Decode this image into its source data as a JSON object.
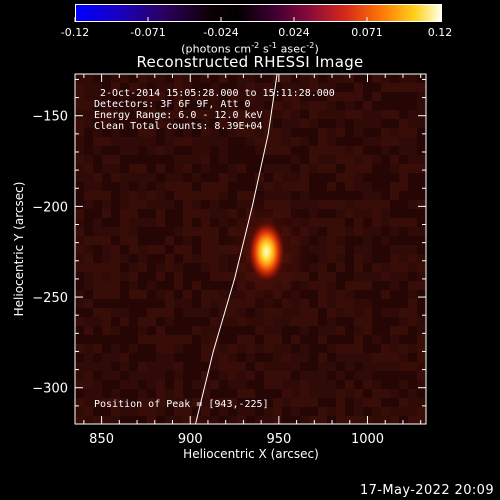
{
  "colorbar": {
    "ticks": [
      "-0.12",
      "-0.071",
      "-0.024",
      "0.024",
      "0.071",
      "0.12"
    ],
    "units_prefix": "(photons cm",
    "units_sup1": "-2",
    "units_mid1": " s",
    "units_sup2": "-1",
    "units_mid2": " asec",
    "units_sup3": "-2",
    "units_suffix": ")"
  },
  "chart_data": {
    "type": "heatmap",
    "title": "Reconstructed RHESSI Image",
    "xlabel": "Heliocentric X (arcsec)",
    "ylabel": "Heliocentric Y (arcsec)",
    "xlim": [
      835,
      1033
    ],
    "ylim": [
      -320,
      -127
    ],
    "xticks": [
      850,
      900,
      950,
      1000
    ],
    "yticks": [
      -150,
      -200,
      -250,
      -300
    ],
    "color_range": [
      -0.12,
      0.12
    ],
    "colormap": "hot (blue-black-red-yellow-white)",
    "peak_position": [
      943,
      -225
    ],
    "limb_curve": [
      [
        949,
        -127
      ],
      [
        944,
        -160
      ],
      [
        935,
        -200
      ],
      [
        925,
        -240
      ],
      [
        913,
        -280
      ],
      [
        903,
        -320
      ]
    ],
    "info_lines": [
      "2-Oct-2014 15:05:28.000 to 15:11:28.000",
      "Detectors: 3F 6F 9F, Att 0",
      "Energy Range: 6.0 - 12.0 keV",
      "Clean    Total counts: 8.39E+04"
    ],
    "peak_label": "Position of Peak = [943,-225]"
  },
  "timestamp": "17-May-2022 20:09"
}
